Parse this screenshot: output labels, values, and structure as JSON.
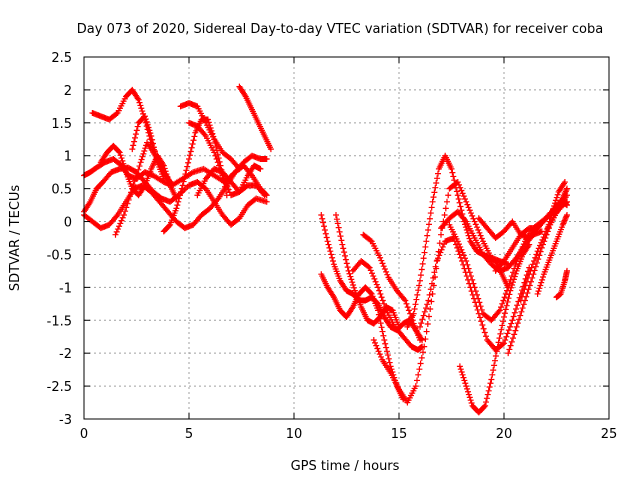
{
  "chart_data": {
    "type": "scatter",
    "title": "Day 073 of 2020, Sidereal Day-to-day VTEC variation (SDTVAR) for receiver coba",
    "xlabel": "GPS time / hours",
    "ylabel": "SDTVAR / TECUs",
    "xlim": [
      0,
      25
    ],
    "ylim": [
      -3,
      2.5
    ],
    "xticks": [
      0,
      5,
      10,
      15,
      20,
      25
    ],
    "yticks": [
      -3,
      -2.5,
      -2,
      -1.5,
      -1,
      -0.5,
      0,
      0.5,
      1,
      1.5,
      2,
      2.5
    ],
    "grid": true,
    "marker": "+",
    "color": "#ff0000",
    "series": [
      {
        "x": [
          0.0,
          0.3,
          0.6,
          1.0,
          1.4,
          1.8,
          2.1,
          2.5,
          2.9,
          3.3,
          3.8,
          4.2,
          4.7,
          5.2,
          5.7,
          6.2,
          6.7,
          7.2,
          7.6,
          8.0,
          8.4,
          8.7
        ],
        "y": [
          0.7,
          0.75,
          0.82,
          0.9,
          0.95,
          0.85,
          0.7,
          0.65,
          0.75,
          0.7,
          0.6,
          0.55,
          0.65,
          0.75,
          0.8,
          0.7,
          0.6,
          0.75,
          0.85,
          0.7,
          0.5,
          0.4
        ]
      },
      {
        "x": [
          0.0,
          0.3,
          0.6,
          0.9,
          1.3,
          1.7,
          2.1,
          2.5,
          2.9,
          3.3,
          3.7,
          4.1,
          4.5,
          5.0,
          5.4,
          5.8,
          6.2,
          6.6,
          7.0,
          7.4,
          7.8,
          8.2,
          8.7
        ],
        "y": [
          0.15,
          0.3,
          0.5,
          0.6,
          0.75,
          0.8,
          0.82,
          0.75,
          0.6,
          0.45,
          0.35,
          0.3,
          0.4,
          0.55,
          0.6,
          0.5,
          0.3,
          0.1,
          -0.05,
          0.05,
          0.25,
          0.35,
          0.3
        ]
      },
      {
        "x": [
          0.0,
          0.4,
          0.8,
          1.2,
          1.6,
          2.0,
          2.4,
          2.8,
          3.2,
          3.6,
          4.0,
          4.4,
          4.8,
          5.2,
          5.6,
          6.0,
          6.4,
          6.8,
          7.2,
          7.6,
          8.0,
          8.4,
          8.7
        ],
        "y": [
          0.1,
          0.0,
          -0.1,
          -0.05,
          0.1,
          0.3,
          0.5,
          0.55,
          0.45,
          0.3,
          0.15,
          0.0,
          -0.1,
          -0.05,
          0.1,
          0.2,
          0.35,
          0.55,
          0.75,
          0.9,
          1.0,
          0.95,
          0.95
        ]
      },
      {
        "x": [
          0.4,
          0.8,
          1.2,
          1.6,
          2.0,
          2.3,
          2.6,
          2.9,
          3.2,
          3.5,
          3.8,
          4.1
        ],
        "y": [
          1.65,
          1.6,
          1.55,
          1.65,
          1.9,
          2.0,
          1.85,
          1.55,
          1.2,
          0.95,
          0.75,
          0.6
        ]
      },
      {
        "x": [
          0.8,
          1.1,
          1.4,
          1.7,
          2.0,
          2.3,
          2.6,
          2.9,
          3.2,
          3.5,
          3.8,
          4.1,
          4.4
        ],
        "y": [
          0.9,
          1.05,
          1.15,
          1.05,
          0.75,
          0.5,
          0.4,
          0.55,
          0.8,
          1.0,
          0.85,
          0.55,
          0.35
        ]
      },
      {
        "x": [
          1.5,
          1.9,
          2.3,
          2.7,
          3.0,
          3.4,
          3.8,
          4.2
        ],
        "y": [
          -0.2,
          0.1,
          0.5,
          0.9,
          1.2,
          1.0,
          0.75,
          0.55
        ]
      },
      {
        "x": [
          2.3,
          2.6,
          2.9,
          3.2,
          3.5,
          3.8
        ],
        "y": [
          1.1,
          1.5,
          1.6,
          1.3,
          0.9,
          0.65
        ]
      },
      {
        "x": [
          3.8,
          4.1,
          4.4,
          4.7,
          5.0,
          5.3,
          5.6,
          5.9,
          6.2,
          6.5,
          6.8
        ],
        "y": [
          -0.15,
          -0.05,
          0.2,
          0.55,
          0.95,
          1.35,
          1.55,
          1.55,
          1.25,
          0.85,
          0.4
        ]
      },
      {
        "x": [
          5.0,
          5.4,
          5.8,
          6.2,
          6.6,
          7.0,
          7.4,
          7.8,
          8.1,
          8.4
        ],
        "y": [
          1.5,
          1.45,
          1.3,
          1.05,
          0.7,
          0.4,
          0.45,
          0.7,
          0.85,
          0.8
        ]
      },
      {
        "x": [
          4.6,
          5.0,
          5.4,
          5.8,
          6.2,
          6.6,
          7.0,
          7.4
        ],
        "y": [
          1.75,
          1.8,
          1.75,
          1.5,
          1.25,
          1.05,
          0.95,
          0.8
        ]
      },
      {
        "x": [
          5.4,
          5.8,
          6.2,
          6.6,
          7.0,
          7.4,
          7.8,
          8.2,
          8.6
        ],
        "y": [
          0.4,
          0.65,
          0.8,
          0.75,
          0.6,
          0.45,
          0.55,
          0.55,
          0.4
        ]
      },
      {
        "x": [
          7.4,
          7.7,
          8.0,
          8.3,
          8.6,
          8.9
        ],
        "y": [
          2.05,
          1.9,
          1.7,
          1.5,
          1.3,
          1.1
        ]
      },
      {
        "x": [
          11.3,
          11.6,
          11.9,
          12.2,
          12.5,
          12.8,
          13.1,
          13.4,
          13.7,
          14.0,
          14.3,
          14.6,
          14.9,
          15.2,
          15.5,
          15.8,
          16.1
        ],
        "y": [
          0.1,
          -0.3,
          -0.65,
          -0.9,
          -1.05,
          -1.1,
          -1.2,
          -1.2,
          -1.15,
          -1.25,
          -1.45,
          -1.6,
          -1.65,
          -1.55,
          -1.5,
          -1.65,
          -1.8
        ]
      },
      {
        "x": [
          11.3,
          11.6,
          11.9,
          12.2,
          12.5,
          12.8,
          13.1,
          13.4,
          13.7,
          14.0,
          14.3,
          14.6,
          14.9,
          15.2
        ],
        "y": [
          -0.8,
          -1.0,
          -1.15,
          -1.35,
          -1.45,
          -1.3,
          -1.1,
          -1.0,
          -1.1,
          -1.35,
          -1.8,
          -2.2,
          -2.5,
          -2.7
        ]
      },
      {
        "x": [
          12.0,
          12.3,
          12.6,
          12.9,
          13.2,
          13.5,
          13.8,
          14.1,
          14.4,
          14.7,
          15.0
        ],
        "y": [
          0.1,
          -0.35,
          -0.75,
          -1.05,
          -1.3,
          -1.5,
          -1.55,
          -1.45,
          -1.3,
          -1.35,
          -1.6
        ]
      },
      {
        "x": [
          12.8,
          13.2,
          13.6,
          14.0,
          14.4,
          14.8,
          15.2,
          15.6,
          15.9,
          16.1
        ],
        "y": [
          -0.75,
          -0.6,
          -0.7,
          -1.0,
          -1.35,
          -1.6,
          -1.75,
          -1.9,
          -1.95,
          -1.9
        ]
      },
      {
        "x": [
          13.3,
          13.7,
          14.1,
          14.5,
          14.9,
          15.3,
          15.7,
          16.0
        ],
        "y": [
          -0.2,
          -0.3,
          -0.55,
          -0.85,
          -1.05,
          -1.2,
          -1.55,
          -1.8
        ]
      },
      {
        "x": [
          13.8,
          14.2,
          14.6,
          15.0,
          15.4,
          15.8,
          16.2,
          16.6,
          17.0,
          17.4,
          17.8,
          18.2,
          18.6,
          19.0,
          19.4,
          19.8,
          20.2
        ],
        "y": [
          -1.8,
          -2.1,
          -2.3,
          -2.55,
          -2.75,
          -2.5,
          -1.9,
          -1.1,
          -0.2,
          0.5,
          0.6,
          0.3,
          0.0,
          -0.3,
          -0.55,
          -0.6,
          -0.65
        ]
      },
      {
        "x": [
          15.4,
          15.7,
          16.0,
          16.3,
          16.6,
          16.9,
          17.2,
          17.5,
          17.8,
          18.1,
          18.4,
          18.7,
          19.0,
          19.3,
          19.6,
          19.9,
          20.2
        ],
        "y": [
          -1.6,
          -1.4,
          -0.9,
          -0.3,
          0.3,
          0.8,
          1.0,
          0.8,
          0.4,
          0.0,
          -0.3,
          -0.45,
          -0.5,
          -0.55,
          -0.6,
          -0.8,
          -1.0
        ]
      },
      {
        "x": [
          16.0,
          16.4,
          16.8,
          17.2,
          17.6,
          18.0,
          18.4,
          18.8,
          19.2,
          19.6,
          20.0,
          20.4,
          20.8,
          21.2
        ],
        "y": [
          -1.6,
          -1.2,
          -0.6,
          -0.3,
          -0.25,
          -0.6,
          -1.0,
          -1.4,
          -1.8,
          -1.95,
          -1.85,
          -1.5,
          -1.1,
          -0.7
        ]
      },
      {
        "x": [
          17.0,
          17.4,
          17.8,
          18.2,
          18.6,
          19.0,
          19.4,
          19.8,
          20.2,
          20.6,
          21.0,
          21.4,
          21.8
        ],
        "y": [
          -0.1,
          0.05,
          0.15,
          0.0,
          -0.25,
          -0.5,
          -0.65,
          -0.75,
          -0.7,
          -0.55,
          -0.35,
          -0.2,
          -0.15
        ]
      },
      {
        "x": [
          17.4,
          17.8,
          18.2,
          18.6,
          19.0,
          19.4,
          19.8,
          20.2,
          20.6,
          21.0,
          21.4,
          21.8,
          22.2,
          22.6
        ],
        "y": [
          -0.05,
          -0.3,
          -0.6,
          -1.0,
          -1.4,
          -1.5,
          -1.35,
          -1.0,
          -0.6,
          -0.3,
          -0.1,
          0.0,
          0.1,
          0.2
        ]
      },
      {
        "x": [
          17.9,
          18.2,
          18.5,
          18.8,
          19.1,
          19.4,
          19.7,
          20.0,
          20.3,
          20.6,
          20.9,
          21.2
        ],
        "y": [
          -2.2,
          -2.5,
          -2.8,
          -2.9,
          -2.8,
          -2.4,
          -1.9,
          -1.45,
          -1.05,
          -0.75,
          -0.5,
          -0.35
        ]
      },
      {
        "x": [
          18.8,
          19.2,
          19.6,
          20.0,
          20.4,
          20.8,
          21.2,
          21.6,
          22.0,
          22.4,
          22.8,
          23.0
        ],
        "y": [
          0.05,
          -0.1,
          -0.25,
          -0.15,
          0.0,
          -0.2,
          -0.25,
          -0.1,
          0.05,
          0.2,
          0.35,
          0.5
        ]
      },
      {
        "x": [
          19.6,
          20.0,
          20.4,
          20.8,
          21.2,
          21.6,
          22.0,
          22.4,
          22.8,
          23.0
        ],
        "y": [
          -0.75,
          -0.6,
          -0.4,
          -0.2,
          -0.1,
          -0.1,
          0.05,
          0.2,
          0.3,
          0.25
        ]
      },
      {
        "x": [
          20.2,
          20.6,
          21.0,
          21.4,
          21.8,
          22.2,
          22.6,
          23.0
        ],
        "y": [
          -2.0,
          -1.6,
          -1.2,
          -0.8,
          -0.4,
          -0.05,
          0.2,
          0.4
        ]
      },
      {
        "x": [
          20.8,
          21.2,
          21.6,
          22.0,
          22.4,
          22.8,
          23.0
        ],
        "y": [
          -1.2,
          -0.8,
          -0.45,
          -0.15,
          0.1,
          0.25,
          0.3
        ]
      },
      {
        "x": [
          21.6,
          21.9,
          22.2,
          22.5,
          22.8,
          23.0
        ],
        "y": [
          -1.1,
          -0.8,
          -0.55,
          -0.3,
          -0.05,
          0.1
        ]
      },
      {
        "x": [
          22.0,
          22.3,
          22.6,
          22.9
        ],
        "y": [
          -0.2,
          0.15,
          0.45,
          0.6
        ]
      },
      {
        "x": [
          22.5,
          22.7,
          22.9,
          23.0
        ],
        "y": [
          -1.15,
          -1.1,
          -0.9,
          -0.75
        ]
      }
    ]
  }
}
